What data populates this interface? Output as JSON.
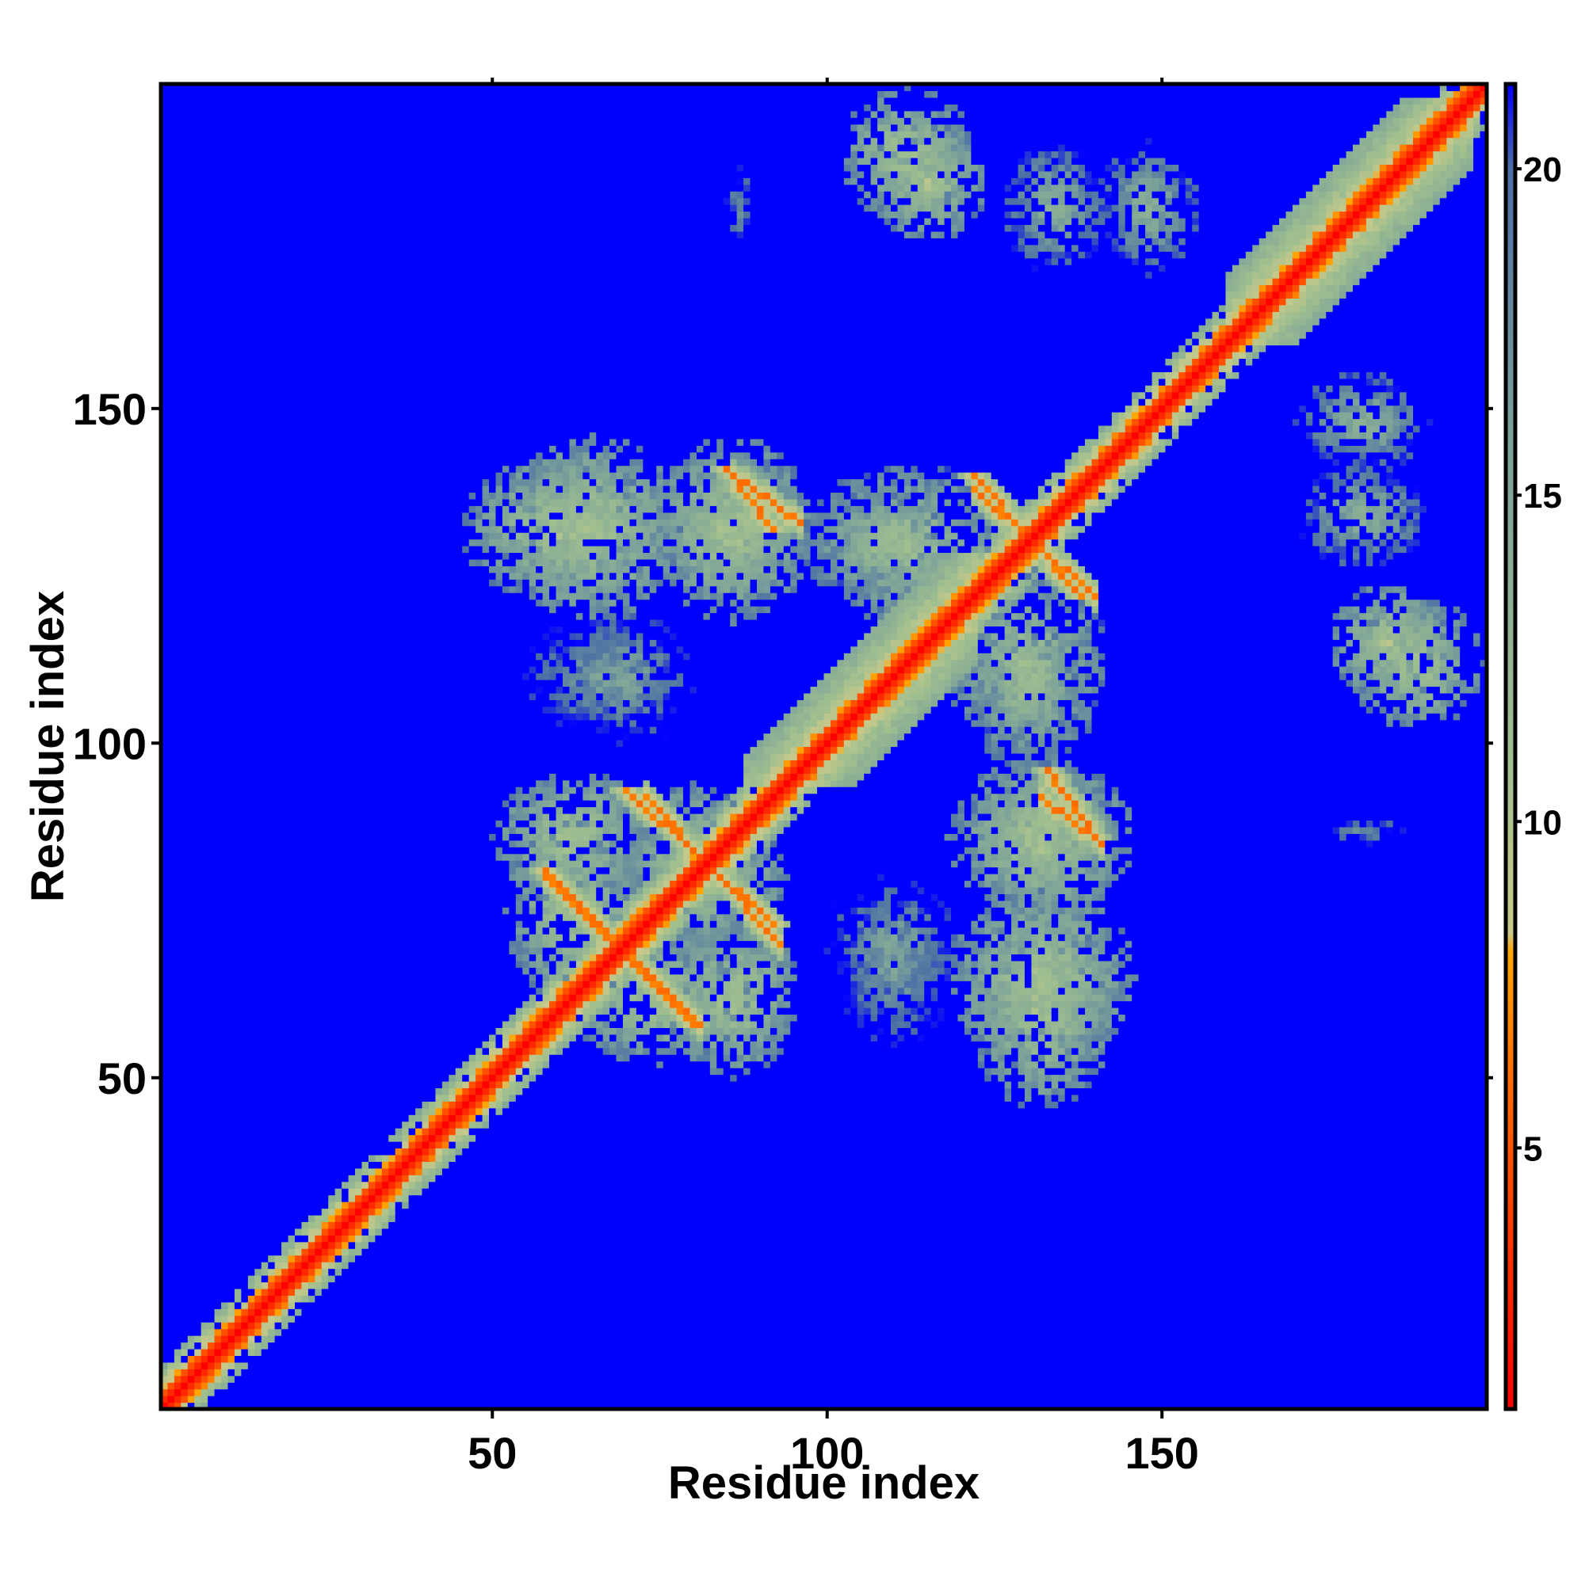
{
  "chart_data": {
    "type": "heatmap",
    "title": "",
    "xlabel": "Residue index",
    "ylabel": "Residue index",
    "xlim": [
      1,
      198
    ],
    "ylim": [
      1,
      198
    ],
    "x_ticks": [
      50,
      100,
      150
    ],
    "y_ticks": [
      50,
      100,
      150
    ],
    "x_tick_labels": [
      "50",
      "100",
      "150"
    ],
    "y_tick_labels": [
      "50",
      "100",
      "150"
    ],
    "colorbar": {
      "min": 1,
      "max": 21.3,
      "ticks": [
        5,
        10,
        15,
        20
      ],
      "tick_labels": [
        "5",
        "10",
        "15",
        "20"
      ],
      "color_stops": [
        {
          "value": 1,
          "color": "#ff0000"
        },
        {
          "value": 6,
          "color": "#ff6a00"
        },
        {
          "value": 8,
          "color": "#ffa500"
        },
        {
          "value": 8.3,
          "color": "#c9c98a"
        },
        {
          "value": 11,
          "color": "#9fbf8f"
        },
        {
          "value": 16,
          "color": "#7aa09a"
        },
        {
          "value": 20,
          "color": "#4a6fa5"
        },
        {
          "value": 21.3,
          "color": "#0000ff"
        }
      ]
    },
    "background_color": "#0000ff",
    "diagonal": {
      "from": 1,
      "to": 198,
      "value": 1
    },
    "secondary_structure_contact_bands": [
      {
        "x": [
          160,
          196
        ],
        "y": [
          160,
          196
        ],
        "min_value": 6,
        "max_value": 12
      },
      {
        "x": [
          88,
          122
        ],
        "y": [
          94,
          128
        ],
        "min_value": 6,
        "max_value": 14
      }
    ],
    "contact_lines": [
      {
        "start": [
          70,
          93
        ],
        "end": [
          92,
          73
        ],
        "value": 7
      },
      {
        "start": [
          58,
          81
        ],
        "end": [
          80,
          58
        ],
        "value": 7
      },
      {
        "start": [
          85,
          141
        ],
        "end": [
          92,
          132
        ],
        "value": 7
      },
      {
        "start": [
          122,
          140
        ],
        "end": [
          138,
          122
        ],
        "value": 7
      },
      {
        "start": [
          133,
          96
        ],
        "end": [
          140,
          86
        ],
        "value": 7
      }
    ],
    "contact_clusters": [
      {
        "x_center": 112,
        "y_center": 188,
        "x_halfwidth": 10,
        "y_halfwidth": 10,
        "min_value": 9
      },
      {
        "x_center": 134,
        "y_center": 180,
        "x_halfwidth": 8,
        "y_halfwidth": 10,
        "min_value": 12
      },
      {
        "x_center": 180,
        "y_center": 148,
        "x_halfwidth": 10,
        "y_halfwidth": 8,
        "min_value": 12
      },
      {
        "x_center": 184,
        "y_center": 115,
        "x_halfwidth": 9,
        "y_halfwidth": 9,
        "min_value": 9
      },
      {
        "x_center": 60,
        "y_center": 132,
        "x_halfwidth": 15,
        "y_halfwidth": 11,
        "min_value": 9
      },
      {
        "x_center": 85,
        "y_center": 132,
        "x_halfwidth": 12,
        "y_halfwidth": 12,
        "min_value": 9
      },
      {
        "x_center": 66,
        "y_center": 110,
        "x_halfwidth": 14,
        "y_halfwidth": 10,
        "min_value": 14
      },
      {
        "x_center": 130,
        "y_center": 112,
        "x_halfwidth": 12,
        "y_halfwidth": 16,
        "min_value": 10
      },
      {
        "x_center": 108,
        "y_center": 130,
        "x_halfwidth": 10,
        "y_halfwidth": 8,
        "min_value": 10
      },
      {
        "x_center": 62,
        "y_center": 86,
        "x_halfwidth": 12,
        "y_halfwidth": 10,
        "min_value": 9
      },
      {
        "x_center": 82,
        "y_center": 80,
        "x_halfwidth": 12,
        "y_halfwidth": 10,
        "min_value": 9
      },
      {
        "x_center": 75,
        "y_center": 62,
        "x_halfwidth": 14,
        "y_halfwidth": 10,
        "min_value": 9
      },
      {
        "x_center": 132,
        "y_center": 86,
        "x_halfwidth": 14,
        "y_halfwidth": 12,
        "min_value": 9
      },
      {
        "x_center": 132,
        "y_center": 65,
        "x_halfwidth": 14,
        "y_halfwidth": 14,
        "min_value": 9
      },
      {
        "x_center": 110,
        "y_center": 70,
        "x_halfwidth": 12,
        "y_halfwidth": 12,
        "min_value": 14
      },
      {
        "x_center": 180,
        "y_center": 87,
        "x_halfwidth": 10,
        "y_halfwidth": 4,
        "min_value": 16
      }
    ]
  }
}
